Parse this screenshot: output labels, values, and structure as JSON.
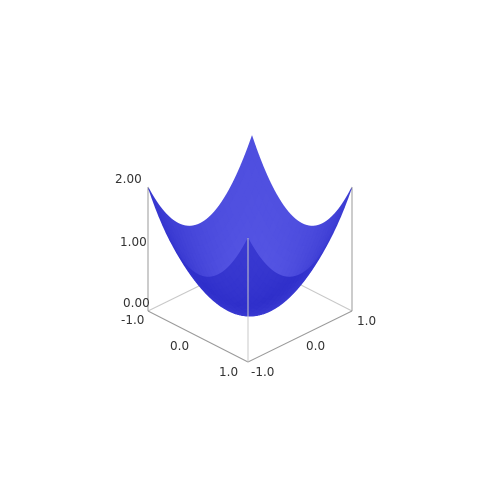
{
  "chart_data": {
    "type": "surface3d",
    "title": "",
    "xlabel": "",
    "ylabel": "",
    "zlabel": "",
    "function": "z = min(x^2 + y^2, 2)",
    "xlim": [
      -1.0,
      1.0
    ],
    "ylim": [
      -1.0,
      1.0
    ],
    "zlim": [
      0.0,
      2.0
    ],
    "x_ticks": [
      "-1.0",
      "0.0",
      "1.0"
    ],
    "y_ticks": [
      "-1.0",
      "0.0",
      "1.0"
    ],
    "z_ticks": [
      "0.00",
      "1.00",
      "2.00"
    ],
    "surface_color": "#5656e4",
    "grid": false,
    "box": true
  }
}
